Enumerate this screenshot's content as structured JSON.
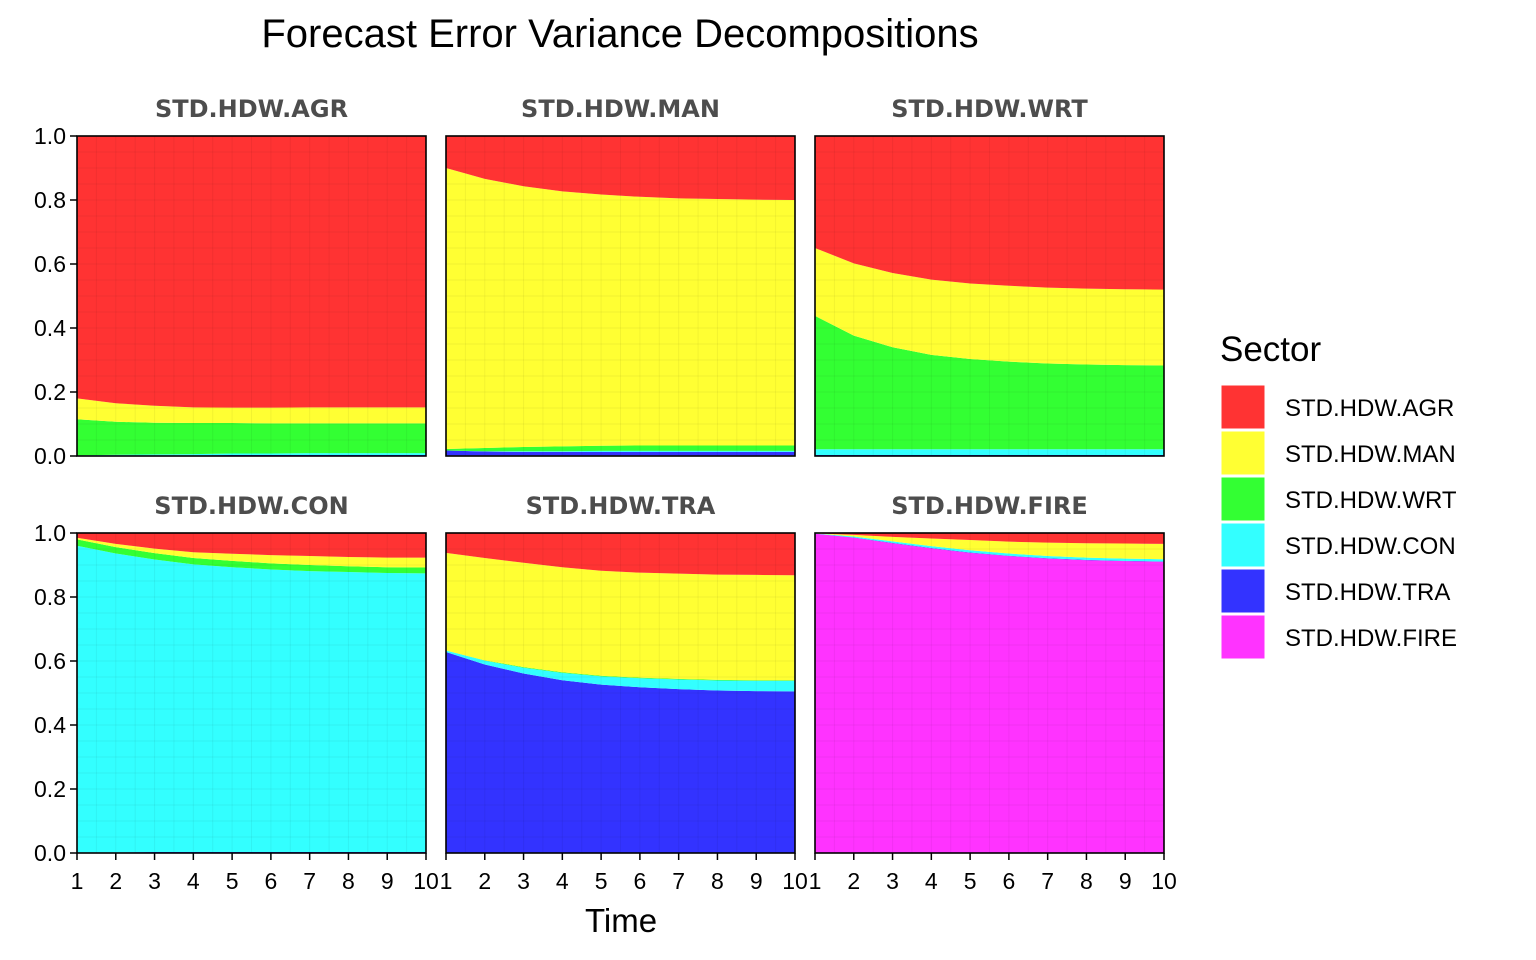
{
  "chart_data": {
    "type": "area",
    "title": "Forecast Error Variance Decompositions",
    "xlabel": "Time",
    "ylabel": "",
    "ylim": [
      0,
      1
    ],
    "xlim": [
      1,
      10
    ],
    "x": [
      1,
      2,
      3,
      4,
      5,
      6,
      7,
      8,
      9,
      10
    ],
    "x_ticks": [
      "1",
      "2",
      "3",
      "4",
      "5",
      "6",
      "7",
      "8",
      "9",
      "10"
    ],
    "y_ticks": [
      "0.0",
      "0.2",
      "0.4",
      "0.6",
      "0.8",
      "1.0"
    ],
    "stacked": true,
    "grid": true,
    "legend": {
      "title": "Sector",
      "position": "right",
      "entries": [
        "STD.HDW.AGR",
        "STD.HDW.MAN",
        "STD.HDW.WRT",
        "STD.HDW.CON",
        "STD.HDW.TRA",
        "STD.HDW.FIRE"
      ]
    },
    "colors": {
      "STD.HDW.AGR": "#ff3333",
      "STD.HDW.MAN": "#ffff33",
      "STD.HDW.WRT": "#33ff33",
      "STD.HDW.CON": "#33ffff",
      "STD.HDW.TRA": "#3333ff",
      "STD.HDW.FIRE": "#ff33ff"
    },
    "panels": [
      {
        "name": "STD.HDW.AGR",
        "series": [
          {
            "name": "STD.HDW.FIRE",
            "values": [
              0.001,
              0.001,
              0.001,
              0.001,
              0.001,
              0.001,
              0.001,
              0.001,
              0.001,
              0.001
            ]
          },
          {
            "name": "STD.HDW.TRA",
            "values": [
              0.001,
              0.001,
              0.001,
              0.001,
              0.002,
              0.002,
              0.002,
              0.002,
              0.002,
              0.002
            ]
          },
          {
            "name": "STD.HDW.CON",
            "values": [
              0.0,
              0.002,
              0.003,
              0.004,
              0.005,
              0.005,
              0.006,
              0.006,
              0.006,
              0.006
            ]
          },
          {
            "name": "STD.HDW.WRT",
            "values": [
              0.113,
              0.103,
              0.099,
              0.097,
              0.095,
              0.094,
              0.093,
              0.093,
              0.093,
              0.093
            ]
          },
          {
            "name": "STD.HDW.MAN",
            "values": [
              0.065,
              0.058,
              0.053,
              0.049,
              0.048,
              0.049,
              0.05,
              0.05,
              0.05,
              0.05
            ]
          },
          {
            "name": "STD.HDW.AGR",
            "values": [
              0.82,
              0.835,
              0.843,
              0.848,
              0.849,
              0.849,
              0.848,
              0.848,
              0.848,
              0.848
            ]
          }
        ]
      },
      {
        "name": "STD.HDW.MAN",
        "series": [
          {
            "name": "STD.HDW.FIRE",
            "values": [
              0.002,
              0.002,
              0.002,
              0.002,
              0.002,
              0.002,
              0.002,
              0.002,
              0.002,
              0.002
            ]
          },
          {
            "name": "STD.HDW.TRA",
            "values": [
              0.015,
              0.012,
              0.011,
              0.011,
              0.011,
              0.011,
              0.011,
              0.011,
              0.011,
              0.011
            ]
          },
          {
            "name": "STD.HDW.CON",
            "values": [
              0.0,
              0.001,
              0.002,
              0.002,
              0.003,
              0.003,
              0.003,
              0.003,
              0.003,
              0.003
            ]
          },
          {
            "name": "STD.HDW.WRT",
            "values": [
              0.005,
              0.01,
              0.013,
              0.015,
              0.016,
              0.017,
              0.017,
              0.017,
              0.017,
              0.017
            ]
          },
          {
            "name": "STD.HDW.MAN",
            "values": [
              0.878,
              0.841,
              0.815,
              0.797,
              0.785,
              0.777,
              0.772,
              0.77,
              0.768,
              0.767
            ]
          },
          {
            "name": "STD.HDW.AGR",
            "values": [
              0.1,
              0.134,
              0.157,
              0.173,
              0.183,
              0.19,
              0.195,
              0.197,
              0.199,
              0.2
            ]
          }
        ]
      },
      {
        "name": "STD.HDW.WRT",
        "series": [
          {
            "name": "STD.HDW.FIRE",
            "values": [
              0.001,
              0.001,
              0.001,
              0.001,
              0.001,
              0.001,
              0.001,
              0.001,
              0.001,
              0.001
            ]
          },
          {
            "name": "STD.HDW.TRA",
            "values": [
              0.002,
              0.002,
              0.002,
              0.002,
              0.002,
              0.002,
              0.002,
              0.002,
              0.002,
              0.002
            ]
          },
          {
            "name": "STD.HDW.CON",
            "values": [
              0.018,
              0.018,
              0.018,
              0.018,
              0.018,
              0.018,
              0.018,
              0.018,
              0.018,
              0.018
            ]
          },
          {
            "name": "STD.HDW.WRT",
            "values": [
              0.417,
              0.355,
              0.319,
              0.295,
              0.282,
              0.274,
              0.268,
              0.265,
              0.263,
              0.262
            ]
          },
          {
            "name": "STD.HDW.MAN",
            "values": [
              0.212,
              0.226,
              0.232,
              0.235,
              0.236,
              0.237,
              0.237,
              0.237,
              0.237,
              0.237
            ]
          },
          {
            "name": "STD.HDW.AGR",
            "values": [
              0.35,
              0.398,
              0.428,
              0.449,
              0.461,
              0.468,
              0.474,
              0.477,
              0.479,
              0.48
            ]
          }
        ]
      },
      {
        "name": "STD.HDW.CON",
        "series": [
          {
            "name": "STD.HDW.FIRE",
            "values": [
              0.001,
              0.001,
              0.001,
              0.001,
              0.001,
              0.001,
              0.001,
              0.001,
              0.001,
              0.001
            ]
          },
          {
            "name": "STD.HDW.TRA",
            "values": [
              0.001,
              0.001,
              0.002,
              0.002,
              0.002,
              0.002,
              0.002,
              0.002,
              0.002,
              0.002
            ]
          },
          {
            "name": "STD.HDW.CON",
            "values": [
              0.958,
              0.934,
              0.914,
              0.899,
              0.89,
              0.883,
              0.878,
              0.875,
              0.872,
              0.871
            ]
          },
          {
            "name": "STD.HDW.WRT",
            "values": [
              0.02,
              0.02,
              0.02,
              0.02,
              0.02,
              0.019,
              0.019,
              0.018,
              0.018,
              0.018
            ]
          },
          {
            "name": "STD.HDW.MAN",
            "values": [
              0.005,
              0.01,
              0.014,
              0.018,
              0.022,
              0.026,
              0.028,
              0.029,
              0.03,
              0.031
            ]
          },
          {
            "name": "STD.HDW.AGR",
            "values": [
              0.015,
              0.034,
              0.049,
              0.06,
              0.065,
              0.069,
              0.072,
              0.075,
              0.077,
              0.077
            ]
          }
        ]
      },
      {
        "name": "STD.HDW.TRA",
        "series": [
          {
            "name": "STD.HDW.FIRE",
            "values": [
              0.001,
              0.001,
              0.001,
              0.001,
              0.001,
              0.001,
              0.001,
              0.001,
              0.001,
              0.001
            ]
          },
          {
            "name": "STD.HDW.TRA",
            "values": [
              0.627,
              0.588,
              0.56,
              0.539,
              0.525,
              0.517,
              0.511,
              0.507,
              0.505,
              0.504
            ]
          },
          {
            "name": "STD.HDW.CON",
            "values": [
              0.005,
              0.012,
              0.018,
              0.023,
              0.026,
              0.028,
              0.03,
              0.031,
              0.032,
              0.033
            ]
          },
          {
            "name": "STD.HDW.WRT",
            "values": [
              0.0,
              0.001,
              0.002,
              0.002,
              0.002,
              0.002,
              0.002,
              0.002,
              0.002,
              0.002
            ]
          },
          {
            "name": "STD.HDW.MAN",
            "values": [
              0.305,
              0.32,
              0.326,
              0.328,
              0.328,
              0.328,
              0.329,
              0.329,
              0.329,
              0.328
            ]
          },
          {
            "name": "STD.HDW.AGR",
            "values": [
              0.062,
              0.078,
              0.093,
              0.107,
              0.118,
              0.124,
              0.127,
              0.13,
              0.131,
              0.132
            ]
          }
        ]
      },
      {
        "name": "STD.HDW.FIRE",
        "series": [
          {
            "name": "STD.HDW.FIRE",
            "values": [
              0.998,
              0.985,
              0.968,
              0.952,
              0.938,
              0.928,
              0.92,
              0.915,
              0.912,
              0.91
            ]
          },
          {
            "name": "STD.HDW.TRA",
            "values": [
              0.0,
              0.001,
              0.001,
              0.001,
              0.001,
              0.001,
              0.001,
              0.001,
              0.001,
              0.001
            ]
          },
          {
            "name": "STD.HDW.CON",
            "values": [
              0.001,
              0.003,
              0.005,
              0.006,
              0.007,
              0.007,
              0.007,
              0.007,
              0.007,
              0.007
            ]
          },
          {
            "name": "STD.HDW.WRT",
            "values": [
              0.0,
              0.0,
              0.0,
              0.0,
              0.0,
              0.0,
              0.0,
              0.0,
              0.0,
              0.0
            ]
          },
          {
            "name": "STD.HDW.MAN",
            "values": [
              0.0,
              0.005,
              0.014,
              0.024,
              0.032,
              0.037,
              0.042,
              0.045,
              0.047,
              0.048
            ]
          },
          {
            "name": "STD.HDW.AGR",
            "values": [
              0.001,
              0.006,
              0.012,
              0.017,
              0.022,
              0.027,
              0.03,
              0.032,
              0.033,
              0.034
            ]
          }
        ]
      }
    ]
  }
}
